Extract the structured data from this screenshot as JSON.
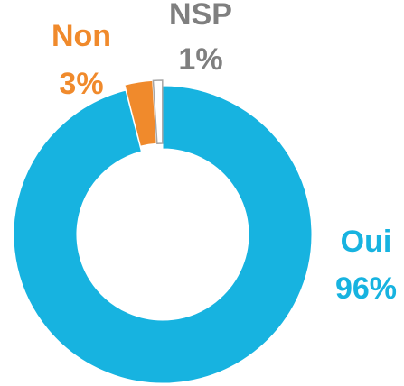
{
  "chart_data": {
    "type": "pie",
    "categories": [
      "Oui",
      "Non",
      "NSP"
    ],
    "values": [
      96,
      3,
      1
    ],
    "value_labels": [
      "96%",
      "3%",
      "1%"
    ],
    "colors": [
      "#17b3e0",
      "#f08a2c",
      "#ffffff"
    ],
    "label_colors": [
      "#17b3e0",
      "#f08a2c",
      "#7f7f7f"
    ]
  }
}
